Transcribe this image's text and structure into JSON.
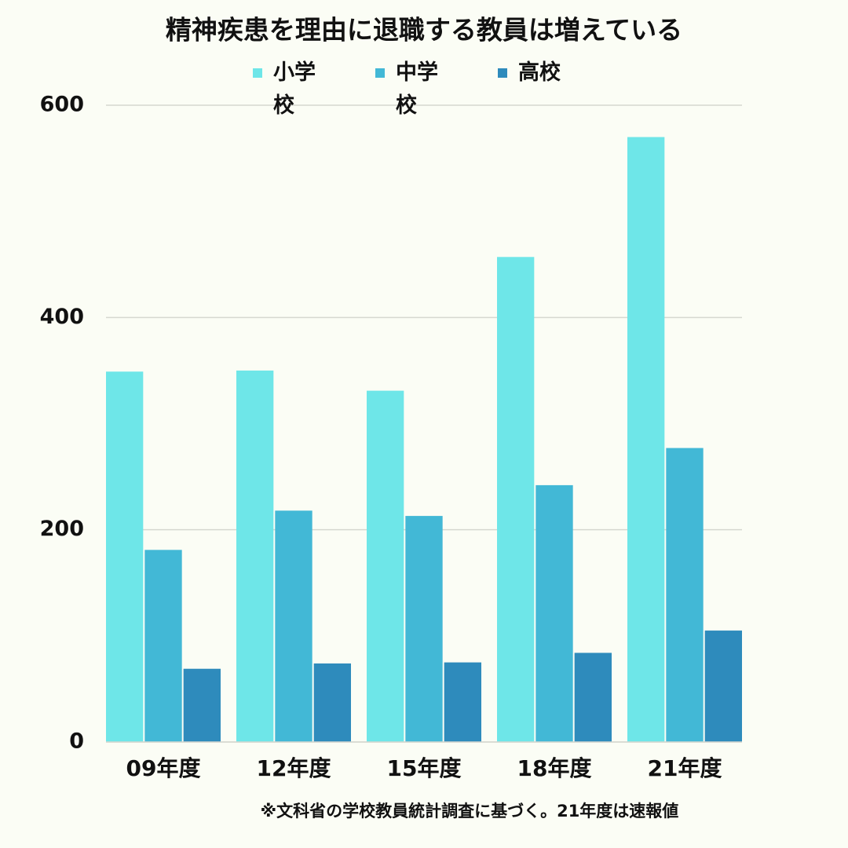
{
  "chart_data": {
    "type": "bar",
    "title": "精神疾患を理由に退職する教員は増えている",
    "categories": [
      "09年度",
      "12年度",
      "15年度",
      "18年度",
      "21年度"
    ],
    "series": [
      {
        "name": "小学校",
        "color": "#6ee6e8",
        "values": [
          349,
          350,
          331,
          457,
          570
        ]
      },
      {
        "name": "中学校",
        "color": "#42b8d6",
        "values": [
          181,
          218,
          213,
          242,
          277
        ]
      },
      {
        "name": "高校",
        "color": "#2e8bbc",
        "values": [
          69,
          74,
          75,
          84,
          105
        ]
      }
    ],
    "ylim": [
      0,
      600
    ],
    "yticks": [
      0,
      200,
      400,
      600
    ],
    "grid": true,
    "note": "※文科省の学校教員統計調査に基づく。21年度は速報値"
  }
}
